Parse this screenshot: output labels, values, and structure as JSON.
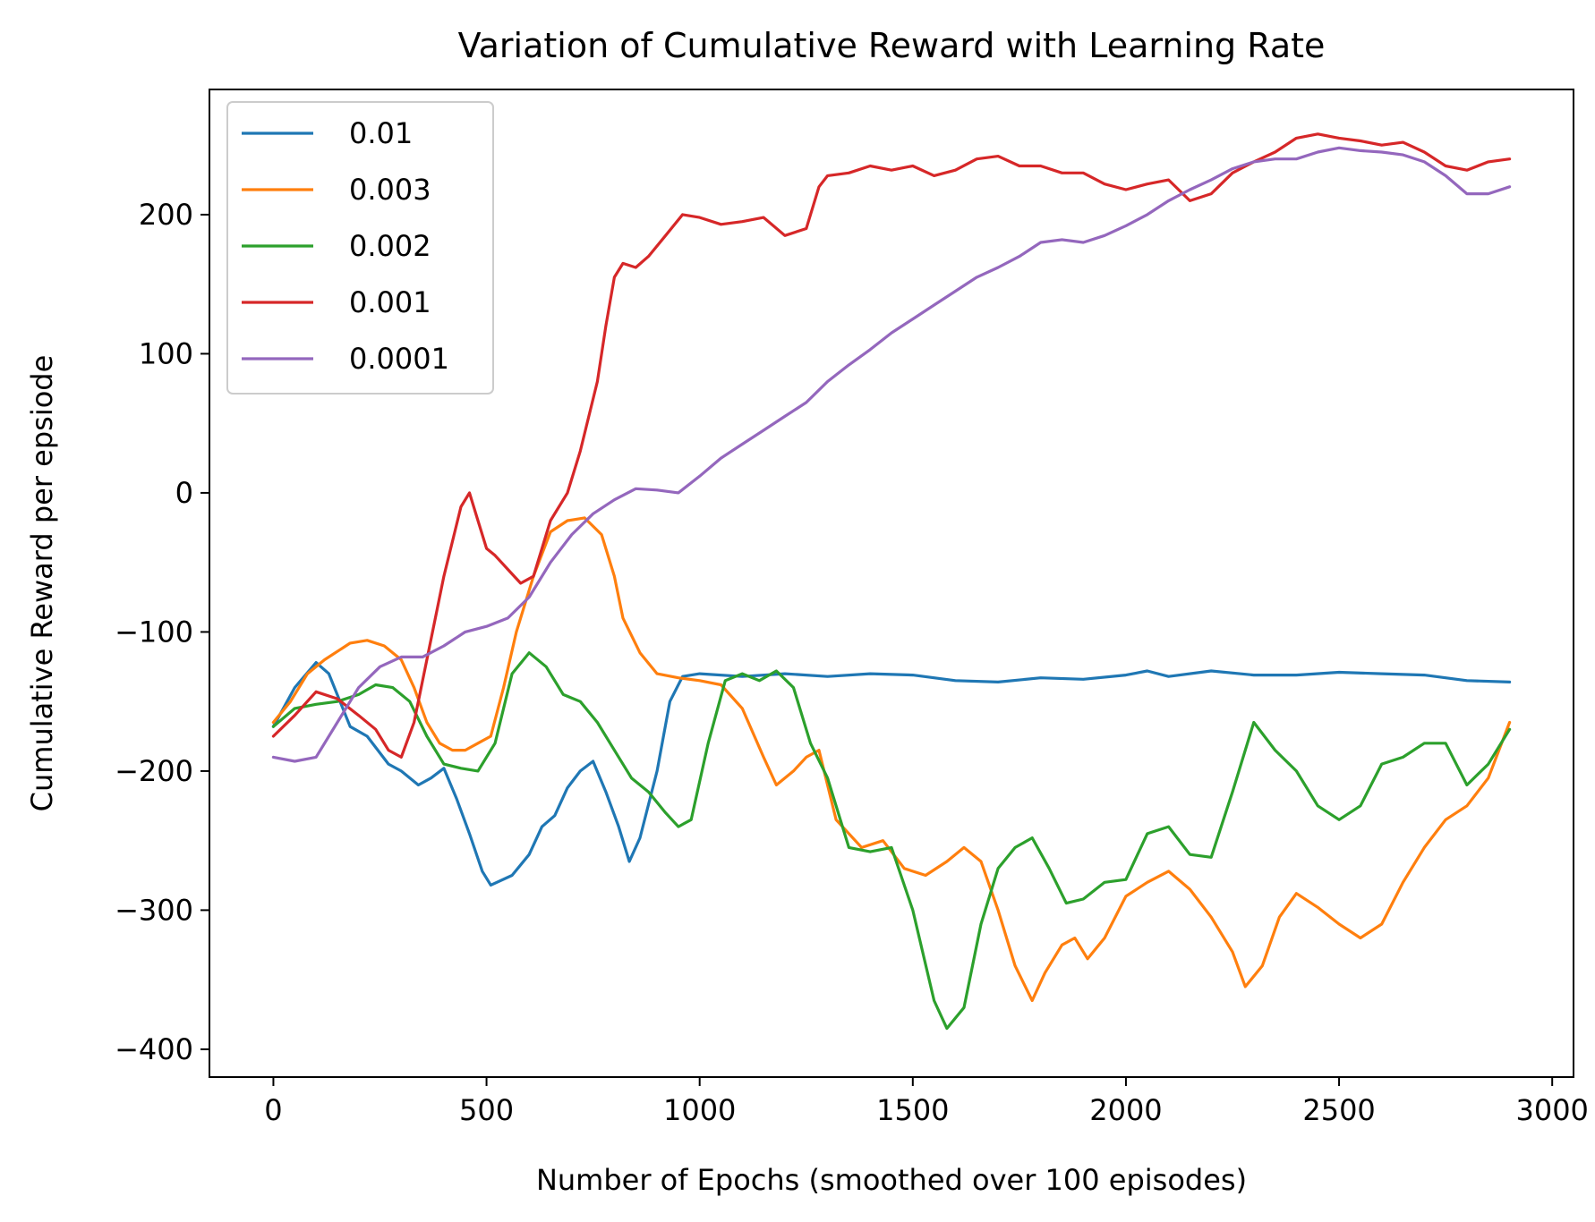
{
  "chart_data": {
    "type": "line",
    "title": "Variation of Cumulative Reward with Learning Rate",
    "xlabel": "Number of Epochs (smoothed over 100 episodes)",
    "ylabel": "Cumulative Reward per epsiode",
    "xlim": [
      -150,
      3050
    ],
    "ylim": [
      -420,
      290
    ],
    "xticks": [
      0,
      500,
      1000,
      1500,
      2000,
      2500,
      3000
    ],
    "xtick_labels": [
      "0",
      "500",
      "1000",
      "1500",
      "2000",
      "2500",
      "3000"
    ],
    "yticks": [
      -400,
      -300,
      -200,
      -100,
      0,
      100,
      200
    ],
    "ytick_labels": [
      "−400",
      "−300",
      "−200",
      "−100",
      "0",
      "100",
      "200"
    ],
    "grid": false,
    "legend_position": "top-left",
    "series": [
      {
        "name": "0.01",
        "color": "#1f77b4",
        "x": [
          0,
          50,
          100,
          130,
          180,
          220,
          270,
          300,
          340,
          370,
          400,
          430,
          460,
          490,
          510,
          560,
          600,
          630,
          660,
          690,
          720,
          750,
          780,
          810,
          835,
          860,
          900,
          930,
          960,
          1000,
          1100,
          1200,
          1300,
          1400,
          1500,
          1600,
          1700,
          1800,
          1900,
          2000,
          2050,
          2100,
          2200,
          2300,
          2400,
          2500,
          2600,
          2700,
          2800,
          2900
        ],
        "y": [
          -168,
          -140,
          -122,
          -130,
          -168,
          -175,
          -195,
          -200,
          -210,
          -205,
          -198,
          -220,
          -245,
          -272,
          -282,
          -275,
          -260,
          -240,
          -232,
          -212,
          -200,
          -193,
          -215,
          -240,
          -265,
          -248,
          -200,
          -150,
          -132,
          -130,
          -132,
          -130,
          -132,
          -130,
          -131,
          -135,
          -136,
          -133,
          -134,
          -131,
          -128,
          -132,
          -128,
          -131,
          -131,
          -129,
          -130,
          -131,
          -135,
          -136
        ]
      },
      {
        "name": "0.003",
        "color": "#ff7f0e",
        "x": [
          0,
          40,
          80,
          120,
          180,
          220,
          260,
          300,
          330,
          360,
          390,
          420,
          450,
          480,
          510,
          540,
          570,
          610,
          650,
          690,
          730,
          770,
          800,
          820,
          860,
          900,
          950,
          1000,
          1050,
          1100,
          1150,
          1180,
          1220,
          1250,
          1280,
          1320,
          1380,
          1430,
          1480,
          1530,
          1580,
          1620,
          1660,
          1700,
          1740,
          1780,
          1810,
          1850,
          1880,
          1910,
          1950,
          2000,
          2050,
          2100,
          2150,
          2200,
          2250,
          2280,
          2320,
          2360,
          2400,
          2450,
          2500,
          2550,
          2600,
          2650,
          2700,
          2750,
          2800,
          2850,
          2900
        ],
        "y": [
          -165,
          -150,
          -130,
          -120,
          -108,
          -106,
          -110,
          -120,
          -140,
          -165,
          -180,
          -185,
          -185,
          -180,
          -175,
          -140,
          -100,
          -60,
          -28,
          -20,
          -18,
          -30,
          -60,
          -90,
          -115,
          -130,
          -133,
          -135,
          -138,
          -155,
          -190,
          -210,
          -200,
          -190,
          -185,
          -235,
          -255,
          -250,
          -270,
          -275,
          -265,
          -255,
          -265,
          -300,
          -340,
          -365,
          -345,
          -325,
          -320,
          -335,
          -320,
          -290,
          -280,
          -272,
          -285,
          -305,
          -330,
          -355,
          -340,
          -305,
          -288,
          -298,
          -310,
          -320,
          -310,
          -280,
          -255,
          -235,
          -225,
          -205,
          -165
        ]
      },
      {
        "name": "0.002",
        "color": "#2ca02c",
        "x": [
          0,
          50,
          100,
          150,
          200,
          240,
          280,
          320,
          360,
          400,
          440,
          480,
          520,
          560,
          600,
          640,
          680,
          720,
          760,
          800,
          840,
          880,
          920,
          950,
          980,
          1020,
          1060,
          1100,
          1140,
          1180,
          1220,
          1260,
          1300,
          1350,
          1400,
          1450,
          1500,
          1550,
          1580,
          1620,
          1660,
          1700,
          1740,
          1780,
          1820,
          1860,
          1900,
          1950,
          2000,
          2050,
          2100,
          2150,
          2200,
          2250,
          2300,
          2350,
          2400,
          2450,
          2500,
          2550,
          2600,
          2650,
          2700,
          2750,
          2800,
          2850,
          2900
        ],
        "y": [
          -168,
          -155,
          -152,
          -150,
          -145,
          -138,
          -140,
          -150,
          -175,
          -195,
          -198,
          -200,
          -180,
          -130,
          -115,
          -125,
          -145,
          -150,
          -165,
          -185,
          -205,
          -215,
          -230,
          -240,
          -235,
          -180,
          -135,
          -130,
          -135,
          -128,
          -140,
          -180,
          -205,
          -255,
          -258,
          -255,
          -300,
          -365,
          -385,
          -370,
          -310,
          -270,
          -255,
          -248,
          -270,
          -295,
          -292,
          -280,
          -278,
          -245,
          -240,
          -260,
          -262,
          -215,
          -165,
          -185,
          -200,
          -225,
          -235,
          -225,
          -195,
          -190,
          -180,
          -180,
          -210,
          -195,
          -170
        ]
      },
      {
        "name": "0.001",
        "color": "#d62728",
        "x": [
          0,
          50,
          100,
          150,
          200,
          240,
          270,
          300,
          330,
          360,
          400,
          440,
          460,
          480,
          500,
          520,
          550,
          580,
          610,
          650,
          690,
          720,
          760,
          780,
          800,
          820,
          850,
          880,
          920,
          960,
          1000,
          1050,
          1100,
          1150,
          1200,
          1250,
          1280,
          1300,
          1350,
          1400,
          1450,
          1500,
          1550,
          1600,
          1650,
          1700,
          1750,
          1800,
          1850,
          1900,
          1950,
          2000,
          2050,
          2100,
          2150,
          2200,
          2250,
          2300,
          2350,
          2400,
          2450,
          2500,
          2550,
          2600,
          2650,
          2700,
          2750,
          2800,
          2850,
          2900
        ],
        "y": [
          -175,
          -160,
          -143,
          -148,
          -160,
          -170,
          -185,
          -190,
          -165,
          -120,
          -60,
          -10,
          0,
          -20,
          -40,
          -45,
          -55,
          -65,
          -60,
          -20,
          0,
          30,
          80,
          120,
          155,
          165,
          162,
          170,
          185,
          200,
          198,
          193,
          195,
          198,
          185,
          190,
          220,
          228,
          230,
          235,
          232,
          235,
          228,
          232,
          240,
          242,
          235,
          235,
          230,
          230,
          222,
          218,
          222,
          225,
          210,
          215,
          230,
          238,
          245,
          255,
          258,
          255,
          253,
          250,
          252,
          245,
          235,
          232,
          238,
          240
        ]
      },
      {
        "name": "0.0001",
        "color": "#9467bd",
        "x": [
          0,
          50,
          100,
          150,
          200,
          250,
          300,
          350,
          400,
          450,
          500,
          550,
          600,
          650,
          700,
          750,
          800,
          850,
          900,
          950,
          1000,
          1050,
          1100,
          1150,
          1200,
          1250,
          1300,
          1350,
          1400,
          1450,
          1500,
          1550,
          1600,
          1650,
          1700,
          1750,
          1800,
          1850,
          1900,
          1950,
          2000,
          2050,
          2100,
          2150,
          2200,
          2250,
          2300,
          2350,
          2400,
          2450,
          2500,
          2550,
          2600,
          2650,
          2700,
          2750,
          2800,
          2850,
          2900
        ],
        "y": [
          -190,
          -193,
          -190,
          -165,
          -140,
          -125,
          -118,
          -118,
          -110,
          -100,
          -96,
          -90,
          -75,
          -50,
          -30,
          -15,
          -5,
          3,
          2,
          0,
          12,
          25,
          35,
          45,
          55,
          65,
          80,
          92,
          103,
          115,
          125,
          135,
          145,
          155,
          162,
          170,
          180,
          182,
          180,
          185,
          192,
          200,
          210,
          218,
          225,
          233,
          238,
          240,
          240,
          245,
          248,
          246,
          245,
          243,
          238,
          228,
          215,
          215,
          220
        ]
      }
    ]
  }
}
